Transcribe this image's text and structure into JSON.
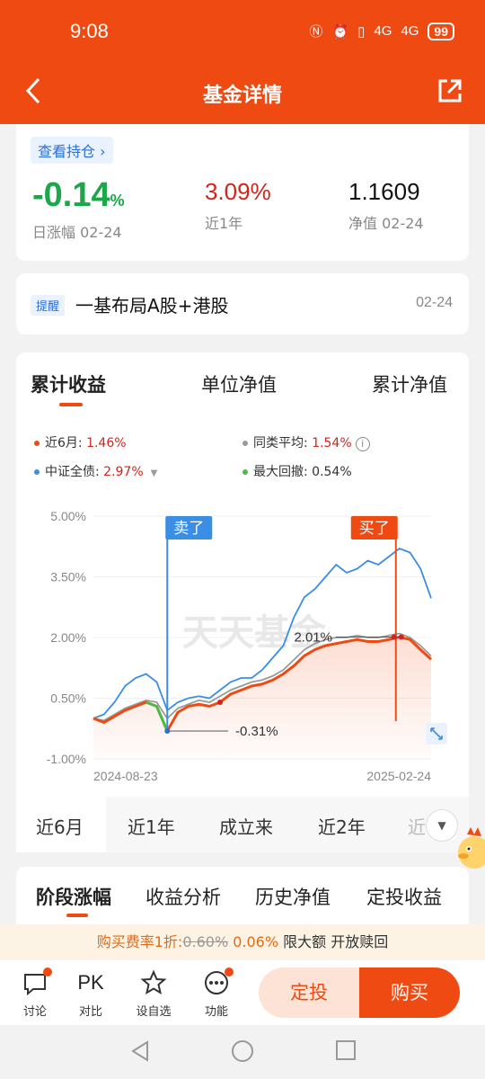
{
  "status": {
    "time": "9:08",
    "battery": "99",
    "signal1": "4G",
    "signal2": "4G"
  },
  "nav": {
    "title": "基金详情"
  },
  "summary": {
    "hold_button": "查看持仓 ›",
    "day_change": "-0.14",
    "day_change_unit": "%",
    "day_change_label": "日涨幅 02-24",
    "year_return": "3.09%",
    "year_return_label": "近1年",
    "nav_value": "1.1609",
    "nav_label": "净值 02-24"
  },
  "reminder": {
    "tag": "提醒",
    "text": "一基布局A股+港股",
    "date": "02-24"
  },
  "chart_tabs": [
    "累计收益",
    "单位净值",
    "累计净值"
  ],
  "legend": {
    "l1_label": "近6月: ",
    "l1_value": "1.46%",
    "l2_label": "同类平均: ",
    "l2_value": "1.54%",
    "l3_label": "中证全债: ",
    "l3_value": "2.97%",
    "l4_label": "最大回撤: ",
    "l4_value": "0.54%",
    "colors": {
      "fund": "#f04a13",
      "peer": "#9a9a9a",
      "index": "#3a8ee6",
      "drawdown": "#4cbb4c"
    }
  },
  "chart_data": {
    "type": "line",
    "ylabel": "",
    "ylim": [
      -1.0,
      5.0
    ],
    "y_ticks": [
      "5.00%",
      "3.50%",
      "2.00%",
      "0.50%",
      "-1.00%"
    ],
    "x_ticks": [
      "2024-08-23",
      "2025-02-24"
    ],
    "watermark": "天天基金",
    "annotations": {
      "sell": "卖了",
      "buy": "买了",
      "max_label": "2.01%",
      "min_label": "-0.31%"
    },
    "series": [
      {
        "name": "近6月",
        "color": "#f04a13",
        "values": [
          0.0,
          -0.1,
          0.05,
          0.2,
          0.3,
          0.4,
          0.3,
          -0.31,
          0.15,
          0.3,
          0.35,
          0.3,
          0.4,
          0.6,
          0.7,
          0.8,
          0.85,
          0.95,
          1.1,
          1.3,
          1.55,
          1.7,
          1.8,
          1.85,
          1.9,
          1.95,
          1.9,
          1.9,
          1.95,
          2.01,
          1.95,
          1.7,
          1.46
        ]
      },
      {
        "name": "同类平均",
        "color": "#9a9a9a",
        "values": [
          0.0,
          -0.05,
          0.1,
          0.25,
          0.35,
          0.45,
          0.4,
          0.0,
          0.25,
          0.35,
          0.45,
          0.4,
          0.55,
          0.7,
          0.8,
          0.9,
          0.95,
          1.05,
          1.2,
          1.45,
          1.7,
          1.85,
          1.95,
          2.0,
          2.0,
          2.05,
          2.0,
          2.0,
          2.05,
          2.1,
          2.0,
          1.8,
          1.54
        ]
      },
      {
        "name": "中证全债",
        "color": "#3a8ee6",
        "values": [
          0.0,
          0.1,
          0.4,
          0.8,
          1.0,
          1.1,
          0.9,
          0.2,
          0.4,
          0.5,
          0.55,
          0.5,
          0.7,
          0.9,
          1.0,
          1.0,
          1.2,
          1.5,
          1.8,
          2.5,
          3.0,
          3.2,
          3.5,
          3.8,
          3.6,
          3.7,
          3.9,
          3.8,
          4.0,
          4.2,
          4.1,
          3.7,
          2.97
        ]
      }
    ]
  },
  "periods": [
    "近6月",
    "近1年",
    "成立来",
    "近2年",
    "近"
  ],
  "section_tabs": [
    "阶段涨幅",
    "收益分析",
    "历史净值",
    "定投收益"
  ],
  "fee": {
    "a": "购买费率1折:",
    "b": "0.60%",
    "c": "0.06%",
    "d": "限大额 开放赎回"
  },
  "bottom": {
    "discuss": "讨论",
    "compare_icon": "PK",
    "compare": "对比",
    "watch": "设自选",
    "function": "功能",
    "invest": "定投",
    "buy": "购买"
  }
}
